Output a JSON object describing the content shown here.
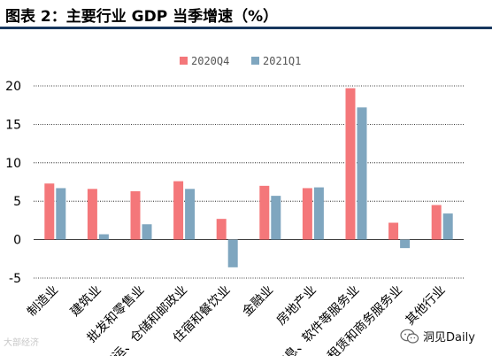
{
  "header": {
    "title": "图表 2：主要行业 GDP 当季增速（%）"
  },
  "watermark": {
    "text": "大部经济"
  },
  "brand": {
    "label": "洞见Daily",
    "icon": "wechat-icon"
  },
  "colors": {
    "series1": "#f4777a",
    "series2": "#7fa6bf",
    "rule": "#17375e",
    "grid": "#000000"
  },
  "chart_data": {
    "type": "bar",
    "title": "图表 2：主要行业 GDP 当季增速（%）",
    "categories": [
      "制造业",
      "建筑业",
      "批发和零售业",
      "交运、仓储和邮政业",
      "住宿和餐饮业",
      "金融业",
      "房地产业",
      "信息、软件等服务业",
      "租赁和商务服务业",
      "其他行业"
    ],
    "series": [
      {
        "name": "2020Q4",
        "values": [
          7.3,
          6.6,
          6.3,
          7.6,
          2.7,
          7.0,
          6.7,
          19.7,
          2.2,
          4.5
        ]
      },
      {
        "name": "2021Q1",
        "values": [
          6.7,
          0.7,
          2.0,
          6.6,
          -3.6,
          5.7,
          6.8,
          17.2,
          -1.1,
          3.4
        ]
      }
    ],
    "yticks": [
      -5,
      0,
      5,
      10,
      15,
      20
    ],
    "ylim": [
      -5,
      20
    ],
    "grid": "horizontal-dotted",
    "legend": "top-center"
  }
}
